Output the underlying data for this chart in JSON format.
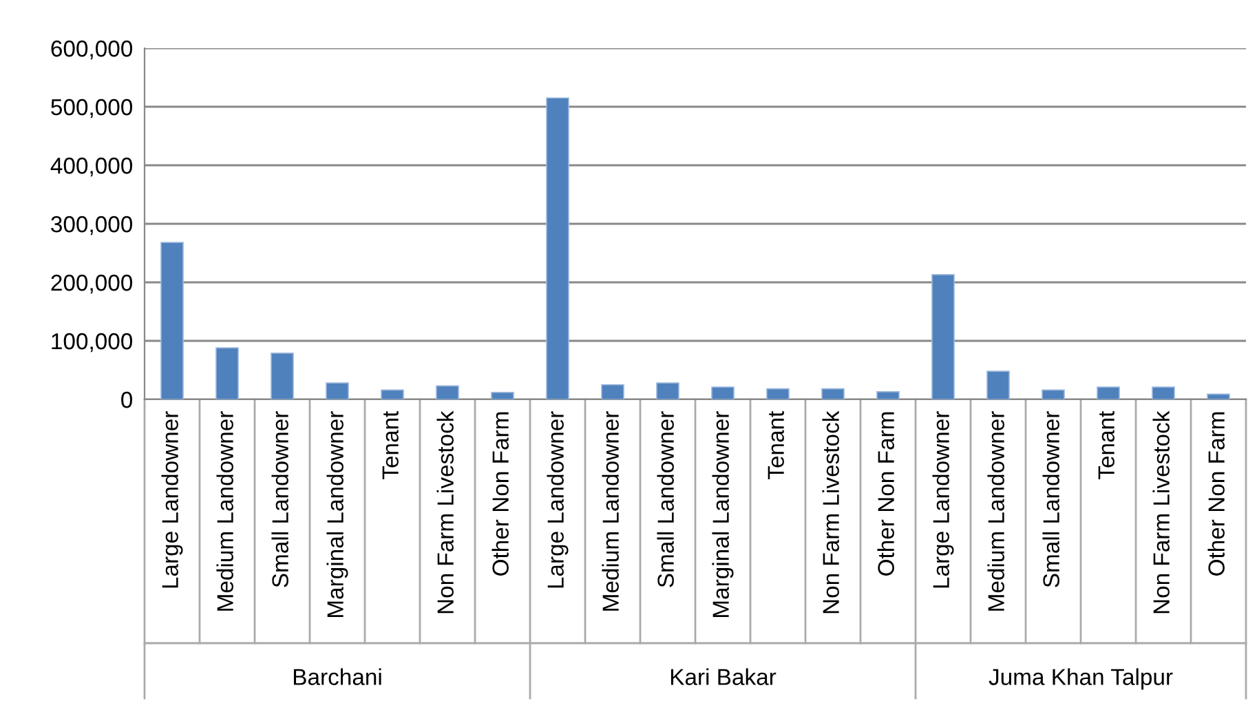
{
  "chart_data": {
    "type": "bar",
    "categories": [
      "Large Landowner",
      "Medium Landowner",
      "Small Landowner",
      "Marginal Landowner",
      "Tenant",
      "Non Farm Livestock",
      "Other Non Farm",
      "Large Landowner",
      "Medium Landowner",
      "Small Landowner",
      "Marginal Landowner",
      "Tenant",
      "Non Farm Livestock",
      "Other Non Farm",
      "Large Landowner",
      "Medium Landowner",
      "Small Landowner",
      "Tenant",
      "Non Farm Livestock",
      "Other Non Farm"
    ],
    "series": [
      {
        "color": "#4f81bd",
        "values": [
          268000,
          88000,
          79000,
          28000,
          16000,
          23000,
          12000,
          515000,
          25000,
          28000,
          21000,
          18000,
          18000,
          13000,
          213000,
          48000,
          16000,
          21000,
          21000,
          9000
        ]
      }
    ],
    "annotations": [
      "Barchani",
      "Kari Bakar",
      "Juma Khan Talpur"
    ],
    "ylim": [
      0,
      600000
    ],
    "yticks": [
      {
        "value": 0,
        "label": "0"
      },
      {
        "value": 100000,
        "label": "100,000"
      },
      {
        "value": 200000,
        "label": "200,000"
      },
      {
        "value": 300000,
        "label": "300,000"
      },
      {
        "value": 400000,
        "label": "400,000"
      },
      {
        "value": 500000,
        "label": "500,000"
      },
      {
        "value": 600000,
        "label": "600,000"
      }
    ],
    "grid": "y",
    "legend": false
  }
}
